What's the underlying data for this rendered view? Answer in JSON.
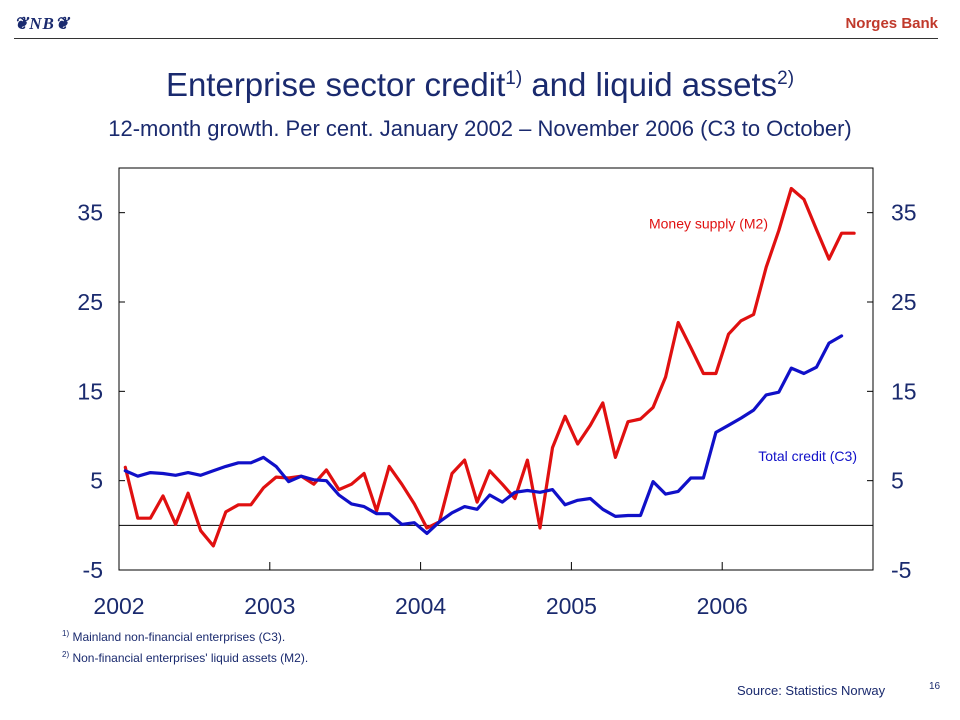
{
  "header": {
    "logo_text": "❦NB❦",
    "bank_name": "Norges Bank"
  },
  "title": {
    "main": "Enterprise sector credit",
    "sup1": "1)",
    "middle": " and liquid assets",
    "sup2": "2)",
    "subtitle": "12-month growth. Per cent. January 2002 – November 2006 (C3 to October)"
  },
  "footnotes": {
    "n1_mark": "1)",
    "n1_text": " Mainland non-financial enterprises (C3).",
    "n2_mark": "2)",
    "n2_text": " Non-financial enterprises' liquid assets (M2)."
  },
  "source": "Source: Statistics Norway",
  "page_number": "16",
  "colors": {
    "m2": "#e01010",
    "c3": "#1010c8",
    "text": "#1a2a6e"
  },
  "chart_data": {
    "type": "line",
    "title": "",
    "xlabel": "",
    "ylabel": "",
    "x_ticks": [
      "2002",
      "2003",
      "2004",
      "2005",
      "2006"
    ],
    "y_ticks": [
      35,
      25,
      15,
      5,
      -5
    ],
    "ylim": [
      -5,
      40
    ],
    "xlim": [
      "2002-01",
      "2006-12"
    ],
    "grid": false,
    "zero_line": true,
    "series": [
      {
        "name": "Money supply (M2)",
        "color": "#e01010",
        "start": "2002-01",
        "values": [
          6.5,
          0.8,
          0.8,
          3.3,
          0.1,
          3.6,
          -0.6,
          -2.3,
          1.5,
          2.3,
          2.3,
          4.2,
          5.4,
          5.3,
          5.5,
          4.6,
          6.2,
          4.0,
          4.6,
          5.8,
          1.6,
          6.6,
          4.6,
          2.4,
          -0.3,
          0.4,
          5.8,
          7.3,
          2.6,
          6.1,
          4.6,
          3.0,
          7.3,
          -0.3,
          8.7,
          12.2,
          9.1,
          11.2,
          13.7,
          7.6,
          11.6,
          11.9,
          13.2,
          16.6,
          22.7,
          19.9,
          17.0,
          17.0,
          21.4,
          22.9,
          23.6,
          28.9,
          33.0,
          37.7,
          36.5,
          33.1,
          29.8,
          32.7,
          32.7
        ]
      },
      {
        "name": "Total credit (C3)",
        "color": "#1010c8",
        "start": "2002-01",
        "values": [
          6.1,
          5.5,
          5.9,
          5.8,
          5.6,
          5.9,
          5.6,
          6.1,
          6.6,
          7.0,
          7.0,
          7.6,
          6.6,
          4.9,
          5.5,
          5.1,
          5.0,
          3.4,
          2.4,
          2.1,
          1.3,
          1.3,
          0.1,
          0.3,
          -0.9,
          0.4,
          1.4,
          2.1,
          1.8,
          3.4,
          2.6,
          3.7,
          3.9,
          3.7,
          4.0,
          2.3,
          2.8,
          3.0,
          1.8,
          1.0,
          1.1,
          1.1,
          4.9,
          3.5,
          3.8,
          5.3,
          5.3,
          10.4,
          11.2,
          12.0,
          12.9,
          14.6,
          14.9,
          17.6,
          17.0,
          17.7,
          20.4,
          21.2
        ]
      }
    ]
  }
}
